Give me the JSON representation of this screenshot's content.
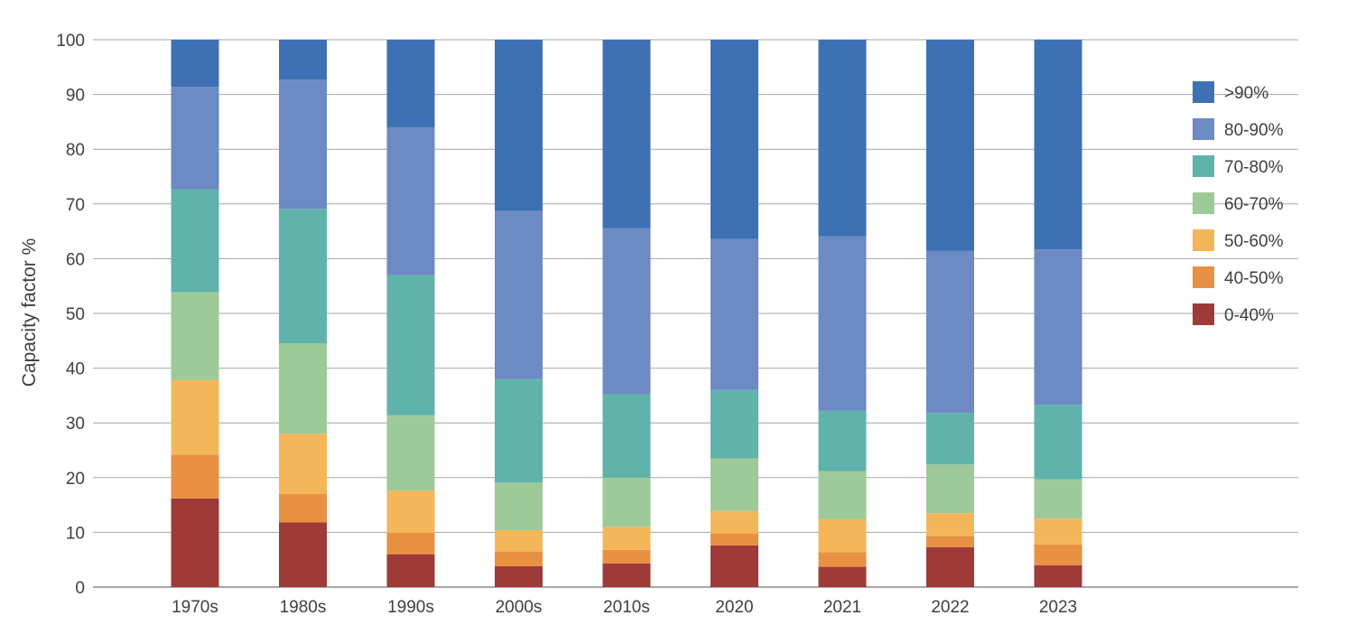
{
  "chart_data": {
    "type": "bar",
    "stacked": true,
    "title": "",
    "xlabel": "",
    "ylabel": "Capacity factor %",
    "ylim": [
      0,
      100
    ],
    "yticks": [
      0,
      10,
      20,
      30,
      40,
      50,
      60,
      70,
      80,
      90,
      100
    ],
    "grid": true,
    "legend_position": "right",
    "categories": [
      "1970s",
      "1980s",
      "1990s",
      "2000s",
      "2010s",
      "2020",
      "2021",
      "2022",
      "2023"
    ],
    "series": [
      {
        "name": "0-40%",
        "color": "#9e3a38",
        "values": [
          16.2,
          11.8,
          6.0,
          3.8,
          4.3,
          7.6,
          3.7,
          7.3,
          4.0
        ]
      },
      {
        "name": "40-50%",
        "color": "#e89142",
        "values": [
          8.0,
          5.2,
          3.9,
          2.7,
          2.5,
          2.2,
          2.7,
          2.0,
          3.8
        ]
      },
      {
        "name": "50-60%",
        "color": "#f3b75a",
        "values": [
          13.6,
          11.0,
          7.7,
          3.9,
          4.2,
          4.1,
          6.0,
          4.2,
          4.7
        ]
      },
      {
        "name": "60-70%",
        "color": "#9ec999",
        "values": [
          16.1,
          16.5,
          13.8,
          8.7,
          9.0,
          9.6,
          8.8,
          8.9,
          7.2
        ]
      },
      {
        "name": "70-80%",
        "color": "#5fb3ab",
        "values": [
          18.8,
          24.6,
          25.6,
          18.9,
          15.2,
          12.5,
          11.0,
          9.4,
          13.6
        ]
      },
      {
        "name": "80-90%",
        "color": "#6c8ac3",
        "values": [
          18.7,
          23.6,
          27.0,
          30.7,
          30.4,
          27.6,
          31.9,
          29.6,
          28.4
        ]
      },
      {
        "name": ">90%",
        "color": "#3e71b3",
        "values": [
          8.6,
          7.3,
          16.0,
          31.3,
          34.4,
          36.4,
          35.9,
          38.6,
          38.3
        ]
      }
    ],
    "legend_order": [
      ">90%",
      "80-90%",
      "70-80%",
      "60-70%",
      "50-60%",
      "40-50%",
      "0-40%"
    ]
  }
}
